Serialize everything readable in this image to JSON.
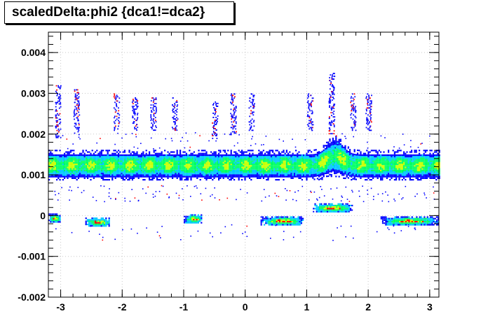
{
  "chart_data": {
    "type": "heatmap",
    "title": "scaledDelta:phi2 {dca1!=dca2}",
    "xlabel": "",
    "ylabel": "",
    "xlim": [
      -3.2,
      3.15
    ],
    "ylim": [
      -0.002,
      0.0045
    ],
    "x_ticks": [
      -3,
      -2,
      -1,
      0,
      1,
      2,
      3
    ],
    "x_tick_labels": [
      "-3",
      "-2",
      "-1",
      "0",
      "1",
      "2",
      "3"
    ],
    "y_ticks": [
      -0.002,
      -0.001,
      0,
      0.001,
      0.002,
      0.003,
      0.004
    ],
    "y_tick_labels": [
      "-0.002",
      "-0.001",
      "0",
      "0.001",
      "0.002",
      "0.003",
      "0.004"
    ],
    "grid": true,
    "palette": [
      "#0000ff",
      "#00c8ff",
      "#00ff64",
      "#c8ff00",
      "#ff0000"
    ],
    "main_band": {
      "center_y": 0.00125,
      "half_width_y": 0.00027,
      "x_range": [
        -3.2,
        3.15
      ],
      "blob_period_x": 0.314,
      "bump": {
        "center_x": 1.45,
        "peak_y": 0.00165
      }
    },
    "upper_streaks": [
      {
        "x": -3.05,
        "ymin": 0.0019,
        "ymax": 0.0032
      },
      {
        "x": -2.75,
        "ymin": 0.002,
        "ymax": 0.0031
      },
      {
        "x": -2.1,
        "ymin": 0.0021,
        "ymax": 0.003
      },
      {
        "x": -1.8,
        "ymin": 0.0021,
        "ymax": 0.0029
      },
      {
        "x": -1.5,
        "ymin": 0.0021,
        "ymax": 0.0029
      },
      {
        "x": -1.15,
        "ymin": 0.0021,
        "ymax": 0.0029
      },
      {
        "x": -0.5,
        "ymin": 0.0019,
        "ymax": 0.0028
      },
      {
        "x": -0.2,
        "ymin": 0.002,
        "ymax": 0.003
      },
      {
        "x": 0.1,
        "ymin": 0.0021,
        "ymax": 0.003
      },
      {
        "x": 1.05,
        "ymin": 0.0021,
        "ymax": 0.003
      },
      {
        "x": 1.4,
        "ymin": 0.002,
        "ymax": 0.0035
      },
      {
        "x": 1.75,
        "ymin": 0.0021,
        "ymax": 0.003
      },
      {
        "x": 2.0,
        "ymin": 0.0021,
        "ymax": 0.003
      }
    ],
    "lower_clusters": [
      {
        "xmin": -3.2,
        "xmax": -3.0,
        "y": -5e-05
      },
      {
        "xmin": -2.6,
        "xmax": -2.2,
        "y": -0.00015
      },
      {
        "xmin": -1.0,
        "xmax": -0.7,
        "y": -7e-05
      },
      {
        "xmin": 0.25,
        "xmax": 0.95,
        "y": -0.00012
      },
      {
        "xmin": 1.1,
        "xmax": 1.75,
        "y": 0.0002
      },
      {
        "xmin": 2.2,
        "xmax": 3.15,
        "y": -0.00012
      }
    ]
  }
}
